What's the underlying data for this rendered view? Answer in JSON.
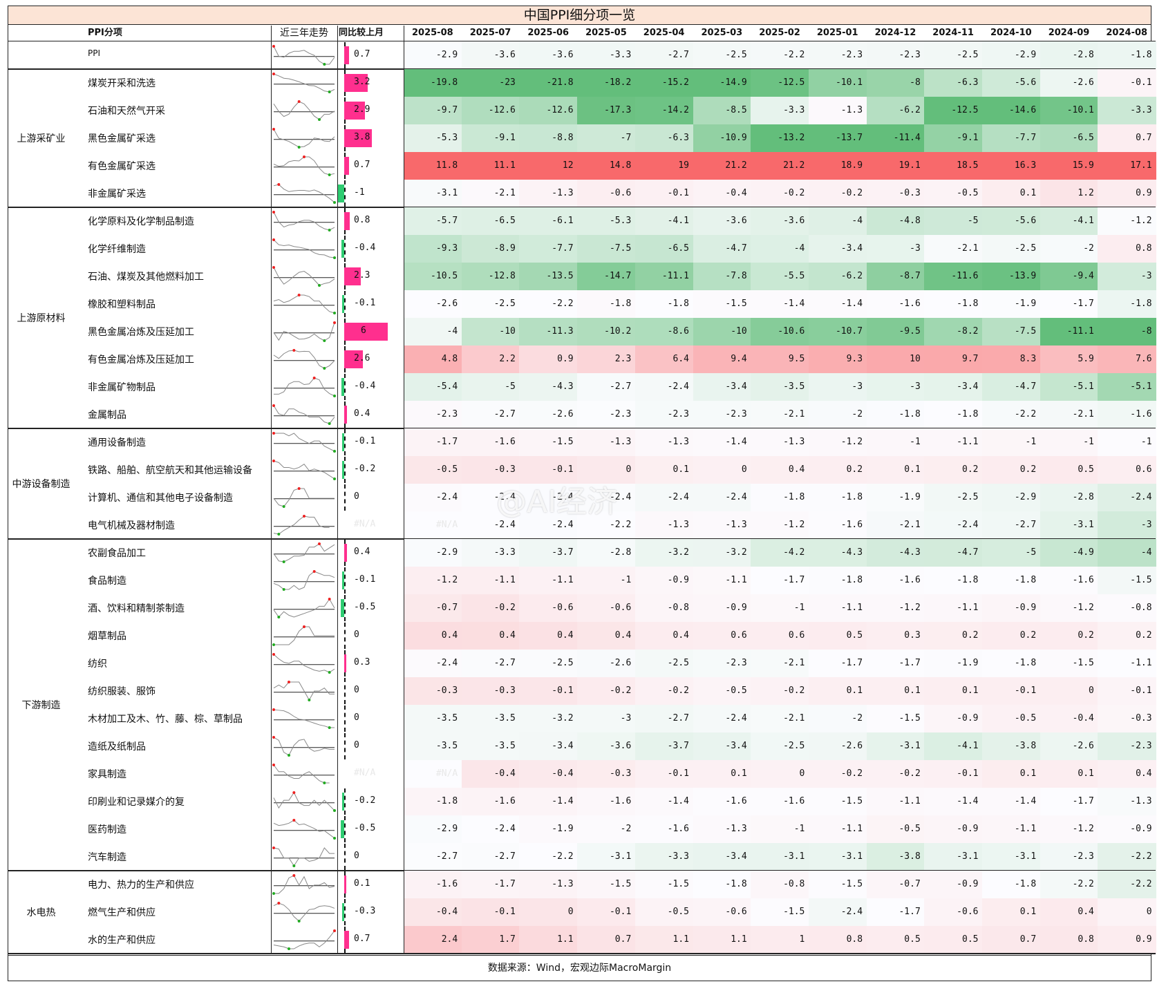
{
  "title": "中国PPI细分项一览",
  "source": "数据来源：Wind，宏观边际MacroMargin",
  "watermark": "@AI经济",
  "headers": {
    "name": "PPI分项",
    "trend": "近三年走势",
    "mom": "同比较上月"
  },
  "colors": {
    "green": "#63be7b",
    "red": "#f8696b",
    "white": "#fcfcff",
    "mom_pos": "#ff2f8e",
    "mom_neg": "#2ecc71"
  },
  "chart_data": {
    "type": "heatmap",
    "months": [
      "2025-08",
      "2025-07",
      "2025-06",
      "2025-05",
      "2025-04",
      "2025-03",
      "2025-02",
      "2025-01",
      "2024-12",
      "2024-11",
      "2024-10",
      "2024-09",
      "2024-08"
    ],
    "color_scale": "per-column: green = lowest, white = middle, red = highest",
    "groups": [
      {
        "label": "",
        "rows": [
          {
            "name": "PPI",
            "mom": 0.7,
            "values": [
              -2.9,
              -3.6,
              -3.6,
              -3.3,
              -2.7,
              -2.5,
              -2.2,
              -2.3,
              -2.3,
              -2.5,
              -2.9,
              -2.8,
              -1.8
            ]
          }
        ]
      },
      {
        "label": "上游采矿业",
        "rows": [
          {
            "name": "煤炭开采和洗选",
            "mom": 3.2,
            "values": [
              -19.8,
              -23,
              -21.8,
              -18.2,
              -15.2,
              -14.9,
              -12.5,
              -10.1,
              -8,
              -6.3,
              -5.6,
              -2.6,
              -0.1
            ]
          },
          {
            "name": "石油和天然气开采",
            "mom": 2.9,
            "values": [
              -9.7,
              -12.6,
              -12.6,
              -17.3,
              -14.2,
              -8.5,
              -3.3,
              -1.3,
              -6.2,
              -12.5,
              -14.6,
              -10.1,
              -3.3
            ]
          },
          {
            "name": "黑色金属矿采选",
            "mom": 3.8,
            "values": [
              -5.3,
              -9.1,
              -8.8,
              -7,
              -6.3,
              -10.9,
              -13.2,
              -13.7,
              -11.4,
              -9.1,
              -7.7,
              -6.5,
              0.7
            ]
          },
          {
            "name": "有色金属矿采选",
            "mom": 0.7,
            "values": [
              11.8,
              11.1,
              12,
              14.8,
              19,
              21.2,
              21.2,
              18.9,
              19.1,
              18.5,
              16.3,
              15.9,
              17.1
            ]
          },
          {
            "name": "非金属矿采选",
            "mom": -1,
            "values": [
              -3.1,
              -2.1,
              -1.3,
              -0.6,
              -0.1,
              -0.4,
              -0.2,
              -0.2,
              -0.3,
              -0.5,
              0.1,
              1.2,
              0.9
            ]
          }
        ]
      },
      {
        "label": "上游原材料",
        "rows": [
          {
            "name": "化学原料及化学制品制造",
            "mom": 0.8,
            "values": [
              -5.7,
              -6.5,
              -6.1,
              -5.3,
              -4.1,
              -3.6,
              -3.6,
              -4,
              -4.8,
              -5,
              -5.6,
              -4.1,
              -1.2
            ]
          },
          {
            "name": "化学纤维制造",
            "mom": -0.4,
            "values": [
              -9.3,
              -8.9,
              -7.7,
              -7.5,
              -6.5,
              -4.7,
              -4,
              -3.4,
              -3,
              -2.1,
              -2.5,
              -2,
              0.8
            ]
          },
          {
            "name": "石油、煤炭及其他燃料加工",
            "mom": 2.3,
            "values": [
              -10.5,
              -12.8,
              -13.5,
              -14.7,
              -11.1,
              -7.8,
              -5.5,
              -6.2,
              -8.7,
              -11.6,
              -13.9,
              -9.4,
              -3
            ]
          },
          {
            "name": "橡胶和塑料制品",
            "mom": -0.1,
            "values": [
              -2.6,
              -2.5,
              -2.2,
              -1.8,
              -1.8,
              -1.5,
              -1.4,
              -1.4,
              -1.6,
              -1.8,
              -1.9,
              -1.7,
              -1.8
            ]
          },
          {
            "name": "黑色金属冶炼及压延加工",
            "mom": 6,
            "values": [
              -4,
              -10,
              -11.3,
              -10.2,
              -8.6,
              -10,
              -10.6,
              -10.7,
              -9.5,
              -8.2,
              -7.5,
              -11.1,
              -8
            ]
          },
          {
            "name": "有色金属冶炼及压延加工",
            "mom": 2.6,
            "values": [
              4.8,
              2.2,
              0.9,
              2.3,
              6.4,
              9.4,
              9.5,
              9.3,
              10,
              9.7,
              8.3,
              5.9,
              7.6
            ]
          },
          {
            "name": "非金属矿物制品",
            "mom": -0.4,
            "values": [
              -5.4,
              -5,
              -4.3,
              -2.7,
              -2.4,
              -3.4,
              -3.5,
              -3,
              -3,
              -3.4,
              -4.7,
              -5.1,
              -5.1
            ]
          },
          {
            "name": "金属制品",
            "mom": 0.4,
            "values": [
              -2.3,
              -2.7,
              -2.6,
              -2.3,
              -2.3,
              -2.3,
              -2.1,
              -2,
              -1.8,
              -1.8,
              -2.2,
              -2.1,
              -1.6
            ]
          }
        ]
      },
      {
        "label": "中游设备制造",
        "rows": [
          {
            "name": "通用设备制造",
            "mom": -0.1,
            "values": [
              -1.7,
              -1.6,
              -1.5,
              -1.3,
              -1.3,
              -1.4,
              -1.3,
              -1.2,
              -1,
              -1.1,
              -1,
              -1,
              -1
            ]
          },
          {
            "name": "铁路、船舶、航空航天和其他运输设备",
            "mom": -0.2,
            "values": [
              -0.5,
              -0.3,
              -0.1,
              0,
              0.1,
              0,
              0.4,
              0.2,
              0.1,
              0.2,
              0.2,
              0.5,
              0.6
            ]
          },
          {
            "name": "计算机、通信和其他电子设备制造",
            "mom": 0,
            "values": [
              -2.4,
              -2.4,
              -2.4,
              -2.4,
              -2.4,
              -2.4,
              -1.8,
              -1.8,
              -1.9,
              -2.5,
              -2.9,
              -2.8,
              -2.4
            ]
          },
          {
            "name": "电气机械及器材制造",
            "mom": null,
            "mom_text": "#N/A",
            "values": [
              "#N/A",
              -2.4,
              -2.4,
              -2.2,
              -1.3,
              -1.3,
              -1.2,
              -1.6,
              -2.1,
              -2.4,
              -2.7,
              -3.1,
              -3
            ]
          }
        ]
      },
      {
        "label": "下游制造",
        "rows": [
          {
            "name": "农副食品加工",
            "mom": 0.4,
            "values": [
              -2.9,
              -3.3,
              -3.7,
              -2.8,
              -3.2,
              -3.2,
              -4.2,
              -4.3,
              -4.3,
              -4.7,
              -5,
              -4.9,
              -4
            ]
          },
          {
            "name": "食品制造",
            "mom": -0.1,
            "values": [
              -1.2,
              -1.1,
              -1.1,
              -1,
              -0.9,
              -1.1,
              -1.7,
              -1.8,
              -1.6,
              -1.8,
              -1.8,
              -1.6,
              -1.5
            ]
          },
          {
            "name": "酒、饮料和精制茶制造",
            "mom": -0.5,
            "values": [
              -0.7,
              -0.2,
              -0.6,
              -0.6,
              -0.8,
              -0.9,
              -1,
              -1.1,
              -1.2,
              -1.1,
              -0.9,
              -1.2,
              -0.8
            ]
          },
          {
            "name": "烟草制品",
            "mom": 0,
            "values": [
              0.4,
              0.4,
              0.4,
              0.4,
              0.4,
              0.6,
              0.6,
              0.5,
              0.3,
              0.2,
              0.2,
              0.2,
              0.2
            ]
          },
          {
            "name": "纺织",
            "mom": 0.3,
            "values": [
              -2.4,
              -2.7,
              -2.5,
              -2.6,
              -2.5,
              -2.3,
              -2.1,
              -1.7,
              -1.7,
              -1.9,
              -1.8,
              -1.5,
              -1.1
            ]
          },
          {
            "name": "纺织服装、服饰",
            "mom": 0,
            "values": [
              -0.3,
              -0.3,
              -0.1,
              -0.2,
              -0.2,
              -0.5,
              -0.2,
              0.1,
              0.1,
              0.1,
              -0.1,
              0,
              -0.1
            ]
          },
          {
            "name": "木材加工及木、竹、藤、棕、草制品",
            "mom": 0,
            "values": [
              -3.5,
              -3.5,
              -3.2,
              -3,
              -2.7,
              -2.4,
              -2.1,
              -2,
              -1.5,
              -0.9,
              -0.5,
              -0.4,
              -0.3
            ]
          },
          {
            "name": "造纸及纸制品",
            "mom": 0,
            "values": [
              -3.5,
              -3.5,
              -3.4,
              -3.6,
              -3.7,
              -3.4,
              -2.5,
              -2.6,
              -3.1,
              -4.1,
              -3.8,
              -2.6,
              -2.3
            ]
          },
          {
            "name": "家具制造",
            "mom": null,
            "mom_text": "#N/A",
            "values": [
              "#N/A",
              -0.4,
              -0.4,
              -0.3,
              -0.1,
              0.1,
              0,
              -0.2,
              -0.2,
              -0.1,
              0.1,
              0.1,
              0.4
            ]
          },
          {
            "name": "印刷业和记录媒介的复",
            "mom": -0.2,
            "values": [
              -1.8,
              -1.6,
              -1.4,
              -1.6,
              -1.4,
              -1.6,
              -1.6,
              -1.5,
              -1.1,
              -1.4,
              -1.4,
              -1.7,
              -1.3
            ]
          },
          {
            "name": "医药制造",
            "mom": -0.5,
            "values": [
              -2.9,
              -2.4,
              -1.9,
              -2,
              -1.6,
              -1.3,
              -1,
              -1.1,
              -0.5,
              -0.9,
              -1.1,
              -1.2,
              -0.9
            ]
          },
          {
            "name": "汽车制造",
            "mom": 0,
            "values": [
              -2.7,
              -2.7,
              -2.2,
              -3.1,
              -3.3,
              -3.4,
              -3.1,
              -3.1,
              -3.8,
              -3.1,
              -3.1,
              -2.3,
              -2.2
            ]
          }
        ]
      },
      {
        "label": "水电热",
        "rows": [
          {
            "name": "电力、热力的生产和供应",
            "mom": 0.1,
            "values": [
              -1.6,
              -1.7,
              -1.3,
              -1.5,
              -1.5,
              -1.8,
              -0.8,
              -1.5,
              -0.7,
              -0.9,
              -1.8,
              -2.2,
              -2.2
            ]
          },
          {
            "name": "燃气生产和供应",
            "mom": -0.3,
            "values": [
              -0.4,
              -0.1,
              0,
              -0.1,
              -0.5,
              -0.6,
              -1.5,
              -2.4,
              -1.7,
              -0.6,
              0.1,
              0.4,
              0
            ]
          },
          {
            "name": "水的生产和供应",
            "mom": 0.7,
            "values": [
              2.4,
              1.7,
              1.1,
              0.7,
              1.1,
              1.1,
              1,
              0.8,
              0.5,
              0.5,
              0.7,
              0.8,
              0.9
            ]
          }
        ]
      }
    ]
  }
}
